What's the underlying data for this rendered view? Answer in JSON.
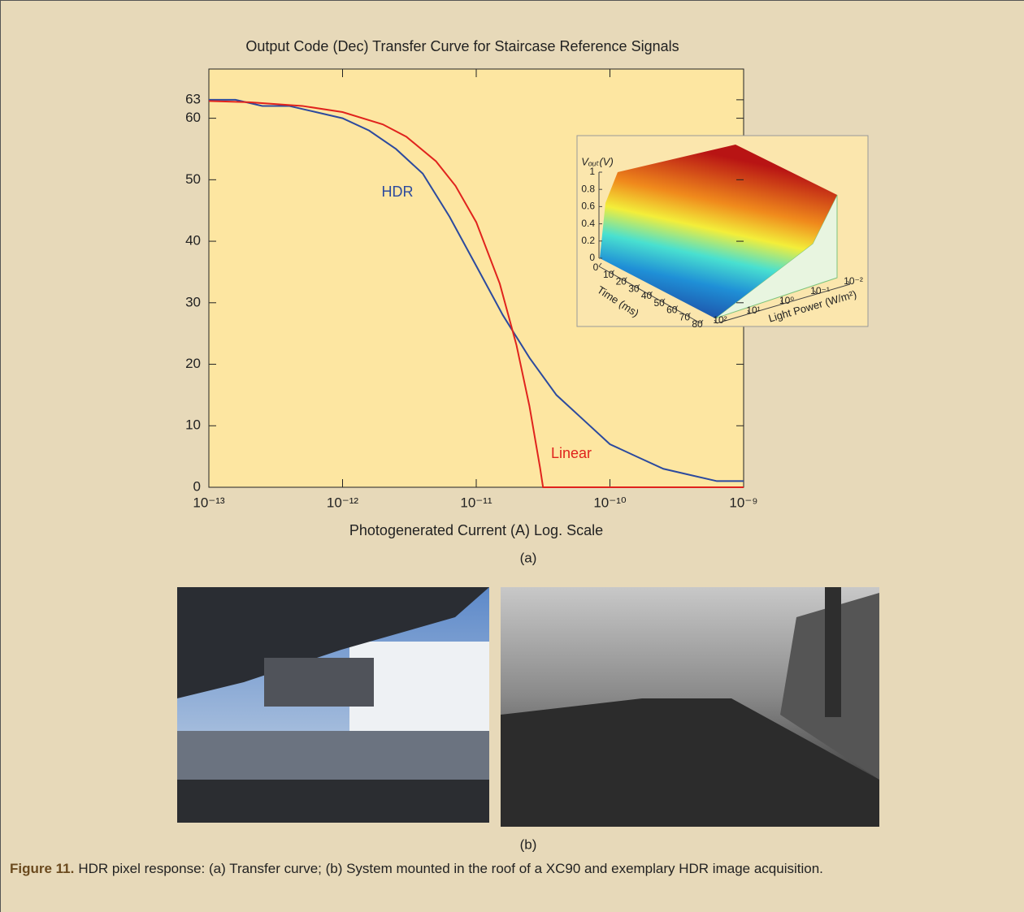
{
  "chart_data": [
    {
      "type": "line",
      "title": "Output Code (Dec)  Transfer Curve for Staircase Reference Signals",
      "x_label": "Photogenerated Current (A) Log. Scale",
      "xscale": "log",
      "xlim": [
        1e-13,
        1e-09
      ],
      "xticks": [
        {
          "value": 1e-13,
          "label": "10⁻¹³"
        },
        {
          "value": 1e-12,
          "label": "10⁻¹²"
        },
        {
          "value": 1e-11,
          "label": "10⁻¹¹"
        },
        {
          "value": 1e-10,
          "label": "10⁻¹⁰"
        },
        {
          "value": 1e-09,
          "label": "10⁻⁹"
        }
      ],
      "ylim": [
        0,
        68
      ],
      "yticks": [
        0,
        10,
        20,
        30,
        40,
        50,
        60,
        63
      ],
      "series": [
        {
          "name": "HDR",
          "color": "#2c4a9e",
          "x": [
            1e-13,
            1.58e-13,
            2.51e-13,
            3.98e-13,
            6.31e-13,
            1e-12,
            1.58e-12,
            2.51e-12,
            3.98e-12,
            6.31e-12,
            1e-11,
            1.58e-11,
            2.51e-11,
            3.98e-11,
            6.31e-11,
            1e-10,
            1.58e-10,
            2.51e-10,
            3.98e-10,
            6.31e-10,
            1e-09
          ],
          "values": [
            63,
            63,
            62,
            62,
            61,
            60,
            58,
            55,
            51,
            44,
            36,
            28,
            21,
            15,
            11,
            7,
            5,
            3,
            2,
            1,
            1
          ]
        },
        {
          "name": "Linear",
          "color": "#e0231d",
          "x": [
            1e-13,
            2e-13,
            5e-13,
            1e-12,
            2e-12,
            3e-12,
            5e-12,
            7e-12,
            1e-11,
            1.5e-11,
            2e-11,
            2.5e-11,
            3e-11,
            3.16e-11,
            1e-10,
            1e-09
          ],
          "values": [
            62.8,
            62.6,
            62.0,
            61.0,
            59.0,
            57.0,
            53.0,
            49.0,
            43.1,
            33.1,
            23.1,
            13.2,
            3.2,
            0,
            0,
            0
          ]
        }
      ]
    },
    {
      "type": "surface3d",
      "z_label": "Vₒᵤₜ(V)",
      "x_label": "Time (ms)",
      "y_label": "Light Power (W/m²)",
      "zlim": [
        0,
        1
      ],
      "zticks": [
        0,
        0.2,
        0.4,
        0.6,
        0.8,
        1
      ],
      "xlim": [
        0,
        80
      ],
      "xticks": [
        0,
        10,
        20,
        30,
        40,
        50,
        60,
        70,
        80
      ],
      "yscale": "log",
      "ylim": [
        100,
        0.01
      ],
      "yticks": [
        {
          "value": 100,
          "label": "10²"
        },
        {
          "value": 10,
          "label": "10¹"
        },
        {
          "value": 1,
          "label": "10⁰"
        },
        {
          "value": 0.1,
          "label": "10⁻¹"
        },
        {
          "value": 0.01,
          "label": "10⁻²"
        }
      ]
    }
  ],
  "panel_labels": [
    "(a)",
    "(b)"
  ],
  "caption": {
    "label": "Figure 11.",
    "text": "HDR pixel response: (a) Transfer curve; (b) System mounted in the roof of a XC90 and exemplary HDR image acquisition."
  }
}
